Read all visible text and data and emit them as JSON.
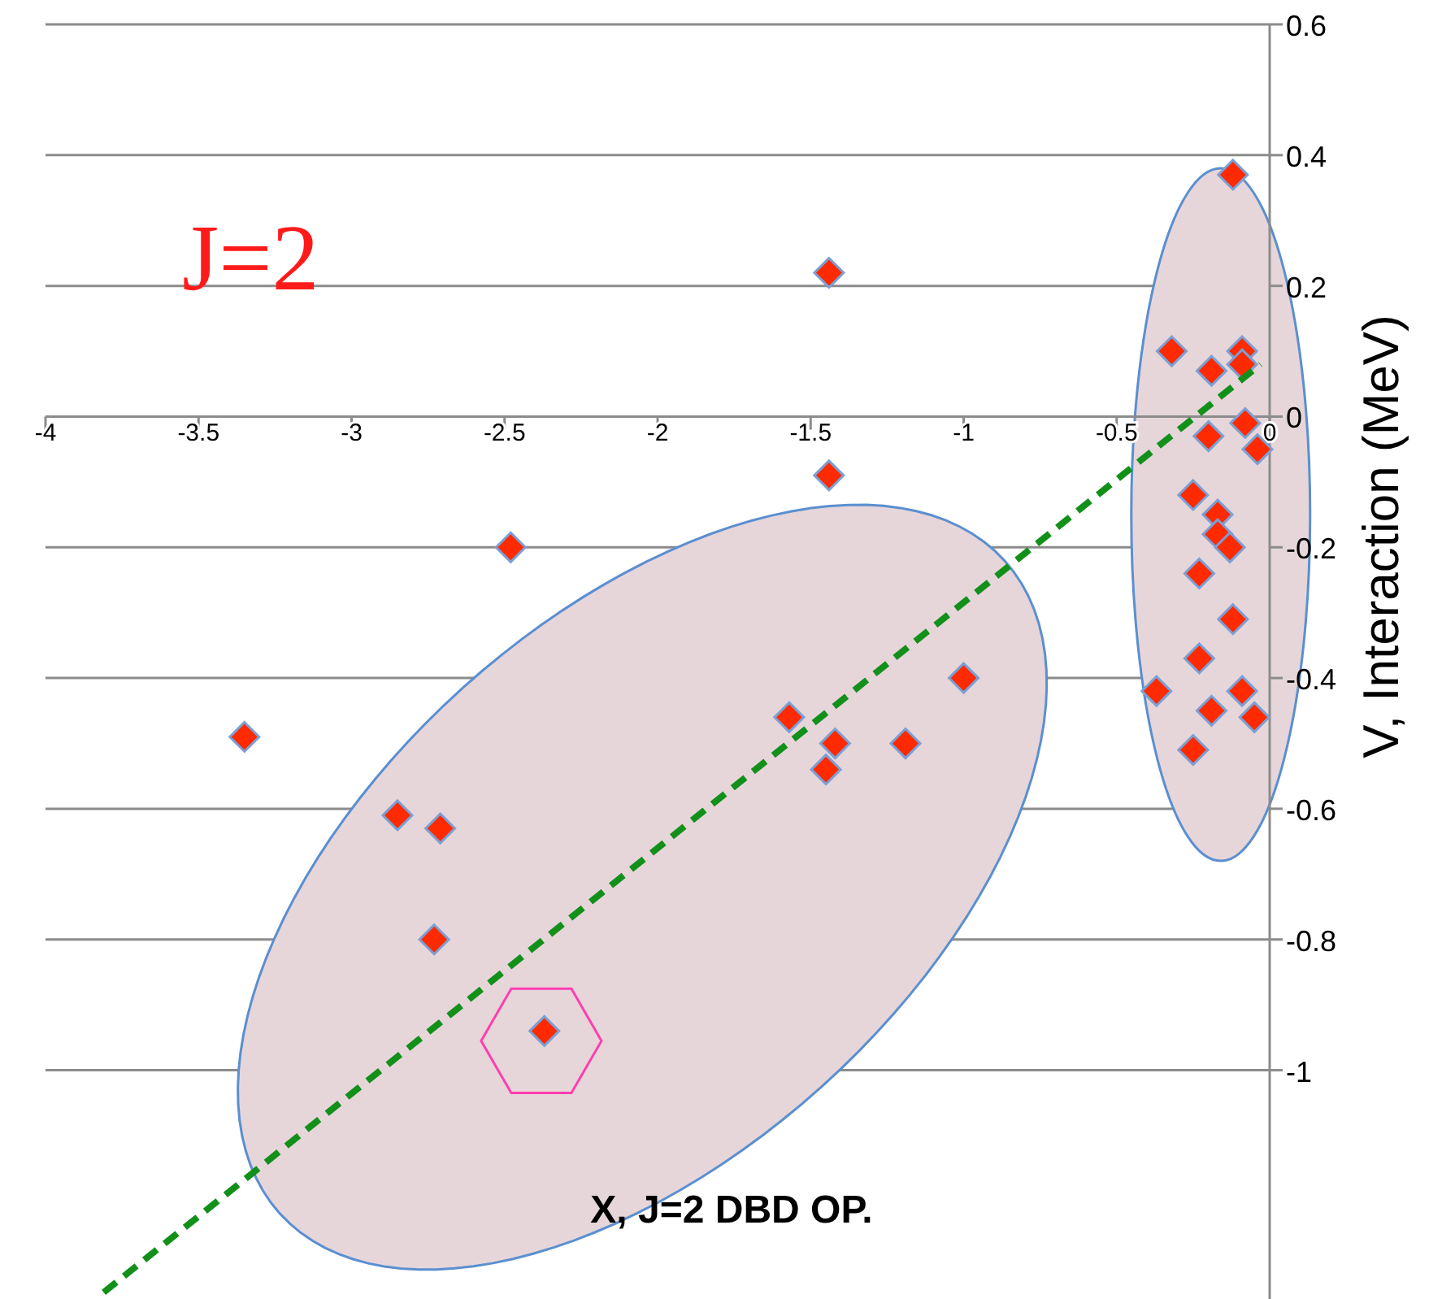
{
  "chart_data": {
    "type": "scatter",
    "xlabel": "X, J=2 DBD OP.",
    "ylabel": "V, Interaction (MeV)",
    "annotations": [
      "J=2"
    ],
    "xlim": [
      -4,
      0
    ],
    "xticks": [
      -4,
      -3.5,
      -3,
      -2.5,
      -2,
      -1.5,
      -1,
      -0.5,
      0
    ],
    "ylim": [
      -1.35,
      0.6
    ],
    "yticks": [
      -1,
      -0.8,
      -0.6,
      -0.4,
      -0.2,
      0,
      0.2,
      0.4,
      0.6
    ],
    "grid": "y",
    "marker": "diamond",
    "legend": false,
    "series": [
      {
        "type": "scatter",
        "color": "#ff2a00",
        "x": [
          -0.12,
          -0.32,
          -0.09,
          -0.09,
          -0.19,
          -0.2,
          -0.08,
          -0.04,
          -0.25,
          -0.17,
          -0.17,
          -0.13,
          -0.23,
          -0.12,
          -0.23,
          -0.37,
          -0.09,
          -0.19,
          -0.05,
          -0.25,
          -1.44,
          -1.44,
          -2.48,
          -3.35,
          -1.57,
          -1.42,
          -1.45,
          -1.19,
          -1.0,
          -2.85,
          -2.71,
          -2.73,
          -2.37
        ],
        "values": [
          0.37,
          0.1,
          0.1,
          0.08,
          0.07,
          -0.03,
          -0.01,
          -0.05,
          -0.12,
          -0.15,
          -0.18,
          -0.2,
          -0.24,
          -0.31,
          -0.37,
          -0.42,
          -0.42,
          -0.45,
          -0.46,
          -0.51,
          0.22,
          -0.09,
          -0.2,
          -0.49,
          -0.46,
          -0.5,
          -0.54,
          -0.5,
          -0.4,
          -0.61,
          -0.63,
          -0.8,
          -0.94
        ]
      },
      {
        "type": "line",
        "color": "#13901a",
        "line_style": "dashed",
        "marker": "none",
        "x": [
          -3.81,
          -0.03
        ],
        "values": [
          -1.34,
          0.08
        ]
      }
    ]
  }
}
